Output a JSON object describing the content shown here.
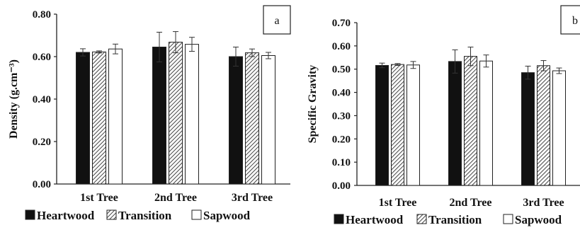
{
  "chart_data": [
    {
      "type": "bar",
      "panel_label": "a",
      "ylabel": "Density (g.cm⁻³)",
      "categories": [
        "1st Tree",
        "2nd Tree",
        "3rd Tree"
      ],
      "yticks": [
        "0.00",
        "0.20",
        "0.40",
        "0.60",
        "0.80"
      ],
      "ylim": [
        0,
        0.8
      ],
      "grid": false,
      "legend_position": "bottom",
      "series": [
        {
          "name": "Heartwood",
          "values": [
            0.62,
            0.645,
            0.6
          ],
          "errors": [
            0.017,
            0.07,
            0.045
          ],
          "color": "#111111",
          "pattern": "solid"
        },
        {
          "name": "Transition",
          "values": [
            0.622,
            0.668,
            0.618
          ],
          "errors": [
            0.005,
            0.05,
            0.018
          ],
          "color": "#777777",
          "pattern": "hatch"
        },
        {
          "name": "Sapwood",
          "values": [
            0.636,
            0.658,
            0.605
          ],
          "errors": [
            0.023,
            0.033,
            0.015
          ],
          "color": "#ffffff",
          "pattern": "empty"
        }
      ]
    },
    {
      "type": "bar",
      "panel_label": "b",
      "ylabel": "Specific Gravity",
      "categories": [
        "1st Tree",
        "2nd Tree",
        "3rd Tree"
      ],
      "yticks": [
        "0.00",
        "0.10",
        "0.20",
        "0.30",
        "0.40",
        "0.50",
        "0.60",
        "0.70"
      ],
      "ylim": [
        0,
        0.7
      ],
      "grid": false,
      "legend_position": "bottom",
      "series": [
        {
          "name": "Heartwood",
          "values": [
            0.516,
            0.533,
            0.485
          ],
          "errors": [
            0.01,
            0.05,
            0.028
          ],
          "color": "#111111",
          "pattern": "solid"
        },
        {
          "name": "Transition",
          "values": [
            0.52,
            0.555,
            0.515
          ],
          "errors": [
            0.004,
            0.04,
            0.022
          ],
          "color": "#777777",
          "pattern": "hatch"
        },
        {
          "name": "Sapwood",
          "values": [
            0.518,
            0.535,
            0.493
          ],
          "errors": [
            0.015,
            0.026,
            0.012
          ],
          "color": "#ffffff",
          "pattern": "empty"
        }
      ]
    }
  ]
}
